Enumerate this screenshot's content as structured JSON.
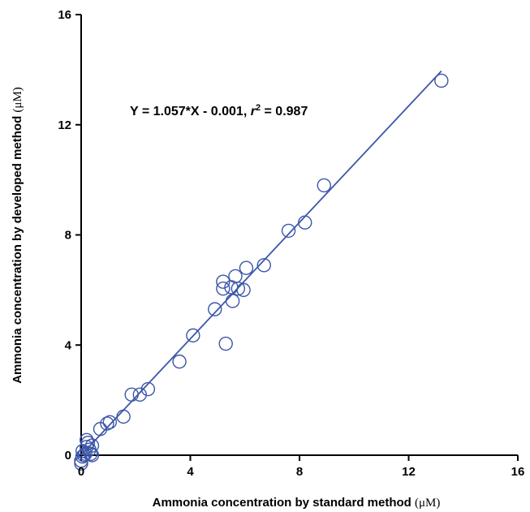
{
  "chart_data": {
    "type": "scatter",
    "xlabel": "Ammonia concentration by standard method (μM)",
    "xlabel_text": "Ammonia concentration by standard method ",
    "xlabel_unit": "(μM)",
    "ylabel": "Ammonia concentration by developed method (μM)",
    "ylabel_text": "Ammonia concentration by developed method ",
    "ylabel_unit": "(μM)",
    "xlim": [
      0,
      16
    ],
    "ylim": [
      0,
      16
    ],
    "xticks": [
      0,
      4,
      8,
      12,
      16
    ],
    "yticks": [
      0,
      4,
      8,
      12,
      16
    ],
    "x_tick_labels": [
      "0",
      "4",
      "8",
      "12",
      "16"
    ],
    "y_tick_labels": [
      "0",
      "4",
      "8",
      "12",
      "16"
    ],
    "grid": false,
    "annotation": {
      "prefix": "Y = 1.057*X - 0.001, ",
      "r_symbol": "r",
      "r_exp": "2",
      "suffix": " = 0.987"
    },
    "fit_line": {
      "slope": 1.057,
      "intercept": -0.001,
      "x_range": [
        0,
        13.2
      ]
    },
    "marker": "open-circle",
    "color": "#3c56a8",
    "points": [
      {
        "x": 0.0,
        "y": -0.3
      },
      {
        "x": 0.0,
        "y": -0.2
      },
      {
        "x": 0.05,
        "y": -0.05
      },
      {
        "x": 0.1,
        "y": 0.0
      },
      {
        "x": 0.05,
        "y": 0.15
      },
      {
        "x": 0.15,
        "y": 0.05
      },
      {
        "x": 0.2,
        "y": 0.3
      },
      {
        "x": 0.2,
        "y": 0.55
      },
      {
        "x": 0.25,
        "y": 0.45
      },
      {
        "x": 0.3,
        "y": 0.2
      },
      {
        "x": 0.35,
        "y": 0.05
      },
      {
        "x": 0.4,
        "y": 0.0
      },
      {
        "x": 0.4,
        "y": 0.35
      },
      {
        "x": 0.7,
        "y": 0.95
      },
      {
        "x": 0.95,
        "y": 1.15
      },
      {
        "x": 1.05,
        "y": 1.2
      },
      {
        "x": 1.55,
        "y": 1.4
      },
      {
        "x": 1.85,
        "y": 2.2
      },
      {
        "x": 2.15,
        "y": 2.2
      },
      {
        "x": 2.45,
        "y": 2.4
      },
      {
        "x": 3.6,
        "y": 3.4
      },
      {
        "x": 4.1,
        "y": 4.35
      },
      {
        "x": 4.9,
        "y": 5.3
      },
      {
        "x": 5.2,
        "y": 6.3
      },
      {
        "x": 5.2,
        "y": 6.05
      },
      {
        "x": 5.5,
        "y": 6.1
      },
      {
        "x": 5.55,
        "y": 5.6
      },
      {
        "x": 5.65,
        "y": 6.5
      },
      {
        "x": 5.75,
        "y": 6.05
      },
      {
        "x": 5.95,
        "y": 6.0
      },
      {
        "x": 6.05,
        "y": 6.8
      },
      {
        "x": 5.3,
        "y": 4.05
      },
      {
        "x": 6.7,
        "y": 6.9
      },
      {
        "x": 7.6,
        "y": 8.15
      },
      {
        "x": 8.2,
        "y": 8.45
      },
      {
        "x": 8.9,
        "y": 9.8
      },
      {
        "x": 13.2,
        "y": 13.6
      }
    ]
  }
}
